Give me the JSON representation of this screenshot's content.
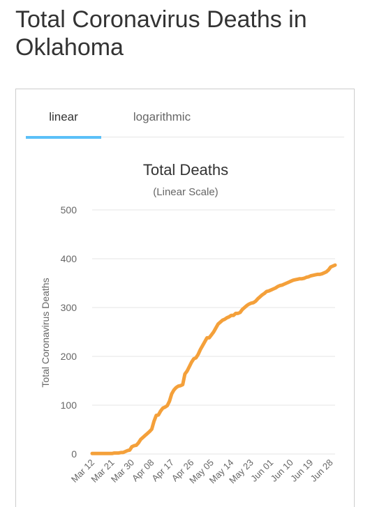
{
  "page": {
    "title": "Total Coronavirus Deaths in Oklahoma"
  },
  "tabs": [
    {
      "label": "linear",
      "active": true
    },
    {
      "label": "logarithmic",
      "active": false
    }
  ],
  "colors": {
    "line": "#f4a03a",
    "tab_underline": "#5bc0f8"
  },
  "chart_data": {
    "type": "line",
    "title": "Total Deaths",
    "subtitle": "(Linear Scale)",
    "ylabel": "Total Coronavirus Deaths",
    "xlabel": "",
    "ylim": [
      0,
      500
    ],
    "yticks": [
      0,
      100,
      200,
      300,
      400,
      500
    ],
    "x_tick_labels": [
      "Mar 12",
      "Mar 21",
      "Mar 30",
      "Apr 08",
      "Apr 17",
      "Apr 26",
      "May 05",
      "May 14",
      "May 23",
      "Jun 01",
      "Jun 10",
      "Jun 19",
      "Jun 28"
    ],
    "grid": true,
    "legend": "none",
    "series": [
      {
        "x_start": "Mar 12",
        "x_end": "Jul 01",
        "values": [
          1,
          1,
          1,
          1,
          1,
          1,
          1,
          1,
          1,
          1,
          2,
          2,
          2,
          3,
          3,
          5,
          7,
          8,
          15,
          17,
          18,
          23,
          30,
          34,
          38,
          42,
          46,
          51,
          67,
          79,
          80,
          88,
          94,
          96,
          99,
          108,
          123,
          131,
          136,
          139,
          140,
          142,
          164,
          170,
          179,
          188,
          195,
          197,
          204,
          214,
          222,
          230,
          238,
          238,
          244,
          250,
          258,
          266,
          270,
          274,
          276,
          279,
          281,
          284,
          284,
          288,
          288,
          290,
          296,
          300,
          304,
          307,
          309,
          310,
          313,
          318,
          322,
          326,
          329,
          333,
          334,
          336,
          338,
          340,
          343,
          345,
          346,
          348,
          350,
          352,
          354,
          356,
          357,
          358,
          359,
          359,
          360,
          362,
          363,
          365,
          366,
          367,
          368,
          368,
          369,
          371,
          373,
          377,
          383,
          385,
          387
        ]
      }
    ]
  }
}
